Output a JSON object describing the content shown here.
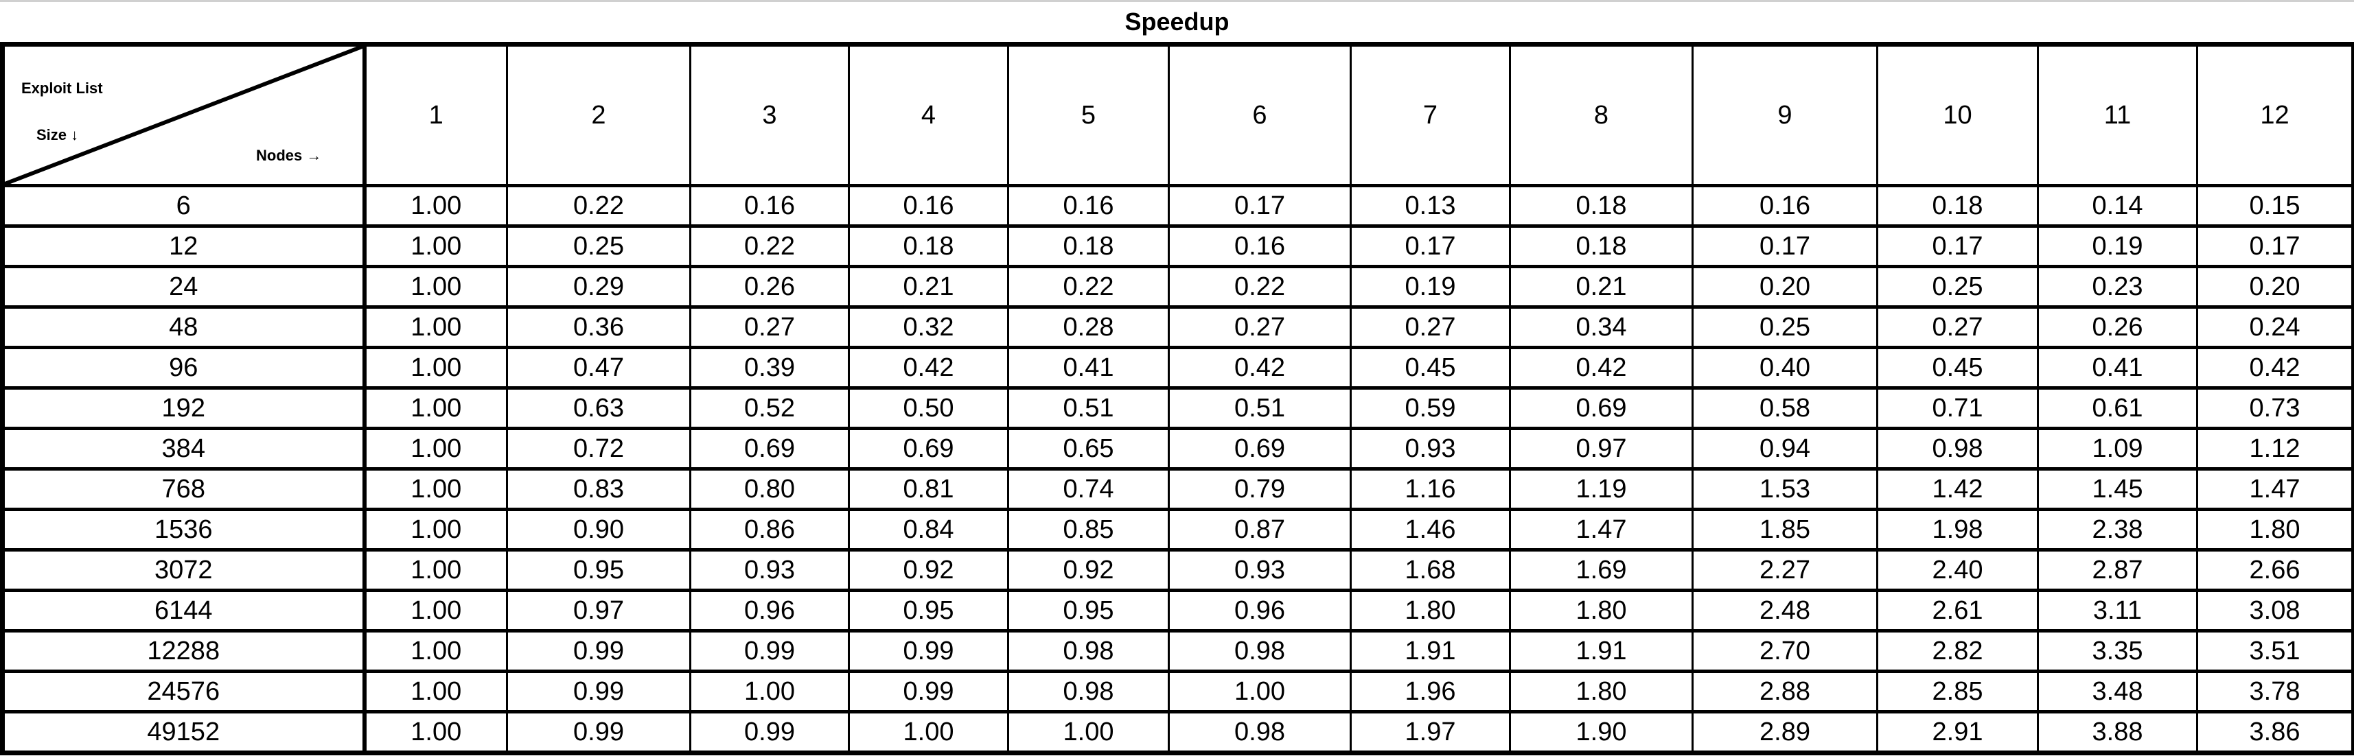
{
  "title": "Speedup",
  "corner": {
    "row_label_line1": "Exploit List",
    "row_label_line2": "Size ↓",
    "col_label": "Nodes →"
  },
  "columns": [
    "1",
    "2",
    "3",
    "4",
    "5",
    "6",
    "7",
    "8",
    "9",
    "10",
    "11",
    "12"
  ],
  "rows": [
    {
      "size": "6",
      "values": [
        "1.00",
        "0.22",
        "0.16",
        "0.16",
        "0.16",
        "0.17",
        "0.13",
        "0.18",
        "0.16",
        "0.18",
        "0.14",
        "0.15"
      ]
    },
    {
      "size": "12",
      "values": [
        "1.00",
        "0.25",
        "0.22",
        "0.18",
        "0.18",
        "0.16",
        "0.17",
        "0.18",
        "0.17",
        "0.17",
        "0.19",
        "0.17"
      ]
    },
    {
      "size": "24",
      "values": [
        "1.00",
        "0.29",
        "0.26",
        "0.21",
        "0.22",
        "0.22",
        "0.19",
        "0.21",
        "0.20",
        "0.25",
        "0.23",
        "0.20"
      ]
    },
    {
      "size": "48",
      "values": [
        "1.00",
        "0.36",
        "0.27",
        "0.32",
        "0.28",
        "0.27",
        "0.27",
        "0.34",
        "0.25",
        "0.27",
        "0.26",
        "0.24"
      ]
    },
    {
      "size": "96",
      "values": [
        "1.00",
        "0.47",
        "0.39",
        "0.42",
        "0.41",
        "0.42",
        "0.45",
        "0.42",
        "0.40",
        "0.45",
        "0.41",
        "0.42"
      ]
    },
    {
      "size": "192",
      "values": [
        "1.00",
        "0.63",
        "0.52",
        "0.50",
        "0.51",
        "0.51",
        "0.59",
        "0.69",
        "0.58",
        "0.71",
        "0.61",
        "0.73"
      ]
    },
    {
      "size": "384",
      "values": [
        "1.00",
        "0.72",
        "0.69",
        "0.69",
        "0.65",
        "0.69",
        "0.93",
        "0.97",
        "0.94",
        "0.98",
        "1.09",
        "1.12"
      ]
    },
    {
      "size": "768",
      "values": [
        "1.00",
        "0.83",
        "0.80",
        "0.81",
        "0.74",
        "0.79",
        "1.16",
        "1.19",
        "1.53",
        "1.42",
        "1.45",
        "1.47"
      ]
    },
    {
      "size": "1536",
      "values": [
        "1.00",
        "0.90",
        "0.86",
        "0.84",
        "0.85",
        "0.87",
        "1.46",
        "1.47",
        "1.85",
        "1.98",
        "2.38",
        "1.80"
      ]
    },
    {
      "size": "3072",
      "values": [
        "1.00",
        "0.95",
        "0.93",
        "0.92",
        "0.92",
        "0.93",
        "1.68",
        "1.69",
        "2.27",
        "2.40",
        "2.87",
        "2.66"
      ]
    },
    {
      "size": "6144",
      "values": [
        "1.00",
        "0.97",
        "0.96",
        "0.95",
        "0.95",
        "0.96",
        "1.80",
        "1.80",
        "2.48",
        "2.61",
        "3.11",
        "3.08"
      ]
    },
    {
      "size": "12288",
      "values": [
        "1.00",
        "0.99",
        "0.99",
        "0.99",
        "0.98",
        "0.98",
        "1.91",
        "1.91",
        "2.70",
        "2.82",
        "3.35",
        "3.51"
      ]
    },
    {
      "size": "24576",
      "values": [
        "1.00",
        "0.99",
        "1.00",
        "0.99",
        "0.98",
        "1.00",
        "1.96",
        "1.80",
        "2.88",
        "2.85",
        "3.48",
        "3.78"
      ]
    },
    {
      "size": "49152",
      "values": [
        "1.00",
        "0.99",
        "0.99",
        "1.00",
        "1.00",
        "0.98",
        "1.97",
        "1.90",
        "2.89",
        "2.91",
        "3.88",
        "3.86"
      ]
    }
  ]
}
